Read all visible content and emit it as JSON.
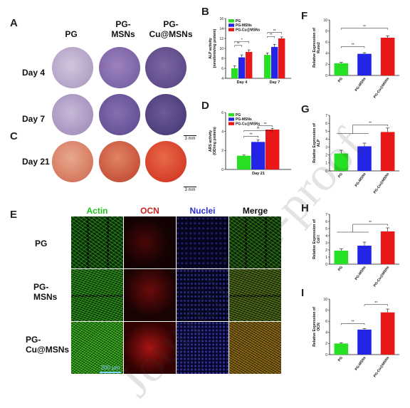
{
  "panel_labels": [
    "A",
    "B",
    "C",
    "D",
    "E",
    "F",
    "G",
    "H",
    "I"
  ],
  "panelA": {
    "columns": [
      [
        "PG"
      ],
      [
        "PG-",
        "MSNs"
      ],
      [
        "PG-",
        "Cu@MSNs"
      ]
    ],
    "rows": [
      "Day 4",
      "Day 7"
    ],
    "scale_bar": "3 mm"
  },
  "panelC": {
    "row": "Day 21",
    "scale_bar": "3 mm"
  },
  "panelE": {
    "columns": [
      "Actin",
      "OCN",
      "Nuclei",
      "Merge"
    ],
    "column_colors": [
      "#22c31e",
      "#d02020",
      "#2b2fcf",
      "#111111"
    ],
    "rows": [
      [
        "PG"
      ],
      [
        "PG-",
        "MSNs"
      ],
      [
        "PG-",
        "Cu@MSNs"
      ]
    ],
    "scale_bar": "200 μm"
  },
  "watermark": "Journal Pre-proof",
  "colors": {
    "PG": "#27e024",
    "PG-MSNs": "#2424e6",
    "PG-Cu@MSNs": "#e81818"
  },
  "chart_data": [
    {
      "id": "B",
      "type": "bar",
      "categories": [
        "Day 4",
        "Day 7"
      ],
      "series": [
        {
          "name": "PG",
          "values": [
            6.0,
            8.7
          ],
          "errors": [
            0.5,
            0.4
          ]
        },
        {
          "name": "PG-MSNs",
          "values": [
            8.2,
            10.3
          ],
          "errors": [
            0.5,
            0.5
          ]
        },
        {
          "name": "PG-Cu@MSNs",
          "values": [
            9.3,
            12.0
          ],
          "errors": [
            0.4,
            0.3
          ]
        }
      ],
      "ylabel": [
        "ALP activity",
        "(nmol/min/mg protein)"
      ],
      "ylim": [
        4,
        16
      ],
      "yticks": [
        4,
        6,
        8,
        10,
        12,
        14,
        16
      ],
      "legend": "top-left",
      "sig": [
        {
          "cat": 0,
          "from": 0,
          "to": 1,
          "level": 10.6,
          "text": "**"
        },
        {
          "cat": 0,
          "from": 0,
          "to": 2,
          "level": 11.4,
          "text": "*"
        },
        {
          "cat": 1,
          "from": 0,
          "to": 1,
          "level": 12.4,
          "text": "**"
        },
        {
          "cat": 1,
          "from": 0,
          "to": 2,
          "level": 13.2,
          "text": "**"
        }
      ]
    },
    {
      "id": "D",
      "type": "bar",
      "categories": [
        "Day 21"
      ],
      "series": [
        {
          "name": "PG",
          "values": [
            1.45
          ],
          "errors": [
            0.08
          ]
        },
        {
          "name": "PG-MSNs",
          "values": [
            2.9
          ],
          "errors": [
            0.2
          ]
        },
        {
          "name": "PG-Cu@MSNs",
          "values": [
            4.2
          ],
          "errors": [
            0.12
          ]
        }
      ],
      "ylabel": [
        "ARS activity",
        "(OD/mg protein)"
      ],
      "ylim": [
        0,
        6
      ],
      "yticks": [
        0,
        2,
        4,
        6
      ],
      "legend": "top-left",
      "sig": [
        {
          "cat": 0,
          "from": 0,
          "to": 1,
          "level": 3.5,
          "text": "**"
        },
        {
          "cat": 0,
          "from": 1,
          "to": 2,
          "level": 4.6,
          "text": "**"
        },
        {
          "cat": 0,
          "from": 0,
          "to": 2,
          "level": 4.1,
          "text": "**"
        }
      ]
    },
    {
      "id": "F",
      "type": "bar",
      "categories": [
        "PG",
        "PG-MSNs",
        "PG-Cu@MSNs"
      ],
      "values": [
        2.2,
        3.9,
        6.8
      ],
      "errors": [
        0.15,
        0.2,
        0.35
      ],
      "ylabel": [
        "Relative Expression of",
        "Runx2"
      ],
      "ylim": [
        0,
        10
      ],
      "yticks": [
        0,
        2,
        4,
        6,
        8,
        10
      ],
      "sig": [
        {
          "from": 0,
          "to": 1,
          "level": 5.2,
          "text": "**"
        },
        {
          "from": 0,
          "to": 2,
          "level": 8.5,
          "text": "**"
        }
      ]
    },
    {
      "id": "G",
      "type": "bar",
      "categories": [
        "PG",
        "PG-MSNs",
        "PG-Cu@MSNs"
      ],
      "values": [
        2.2,
        3.1,
        4.9
      ],
      "errors": [
        0.4,
        0.4,
        0.5
      ],
      "ylabel": [
        "Relative Expression of",
        "ALP"
      ],
      "ylim": [
        0,
        7
      ],
      "yticks": [
        0,
        1,
        2,
        3,
        4,
        5,
        6,
        7
      ],
      "sig": [
        {
          "from": 0,
          "to": 2,
          "level": 5.8,
          "text": "**",
          "group": [
            0,
            1
          ]
        }
      ]
    },
    {
      "id": "H",
      "type": "bar",
      "categories": [
        "PG",
        "PG-MSNs",
        "PG-Cu@MSNs"
      ],
      "values": [
        1.9,
        2.6,
        4.6
      ],
      "errors": [
        0.25,
        0.5,
        0.5
      ],
      "ylabel": [
        "Relative Expression of",
        "Col I"
      ],
      "ylim": [
        0,
        7
      ],
      "yticks": [
        0,
        1,
        2,
        3,
        4,
        5,
        6,
        7
      ],
      "sig": [
        {
          "from": 0,
          "to": 2,
          "level": 5.6,
          "text": "**",
          "group": [
            0,
            1
          ]
        }
      ]
    },
    {
      "id": "I",
      "type": "bar",
      "categories": [
        "PG",
        "PG-MSNs",
        "PG-Cu@MSNs"
      ],
      "values": [
        2.0,
        4.5,
        7.6
      ],
      "errors": [
        0.15,
        0.2,
        0.6
      ],
      "ylabel": [
        "Relative Expression of",
        "OCN"
      ],
      "ylim": [
        0,
        10
      ],
      "yticks": [
        0,
        2,
        4,
        6,
        8,
        10
      ],
      "sig": [
        {
          "from": 0,
          "to": 1,
          "level": 5.6,
          "text": "**"
        },
        {
          "from": 1,
          "to": 2,
          "level": 9.0,
          "text": "**"
        }
      ]
    }
  ]
}
